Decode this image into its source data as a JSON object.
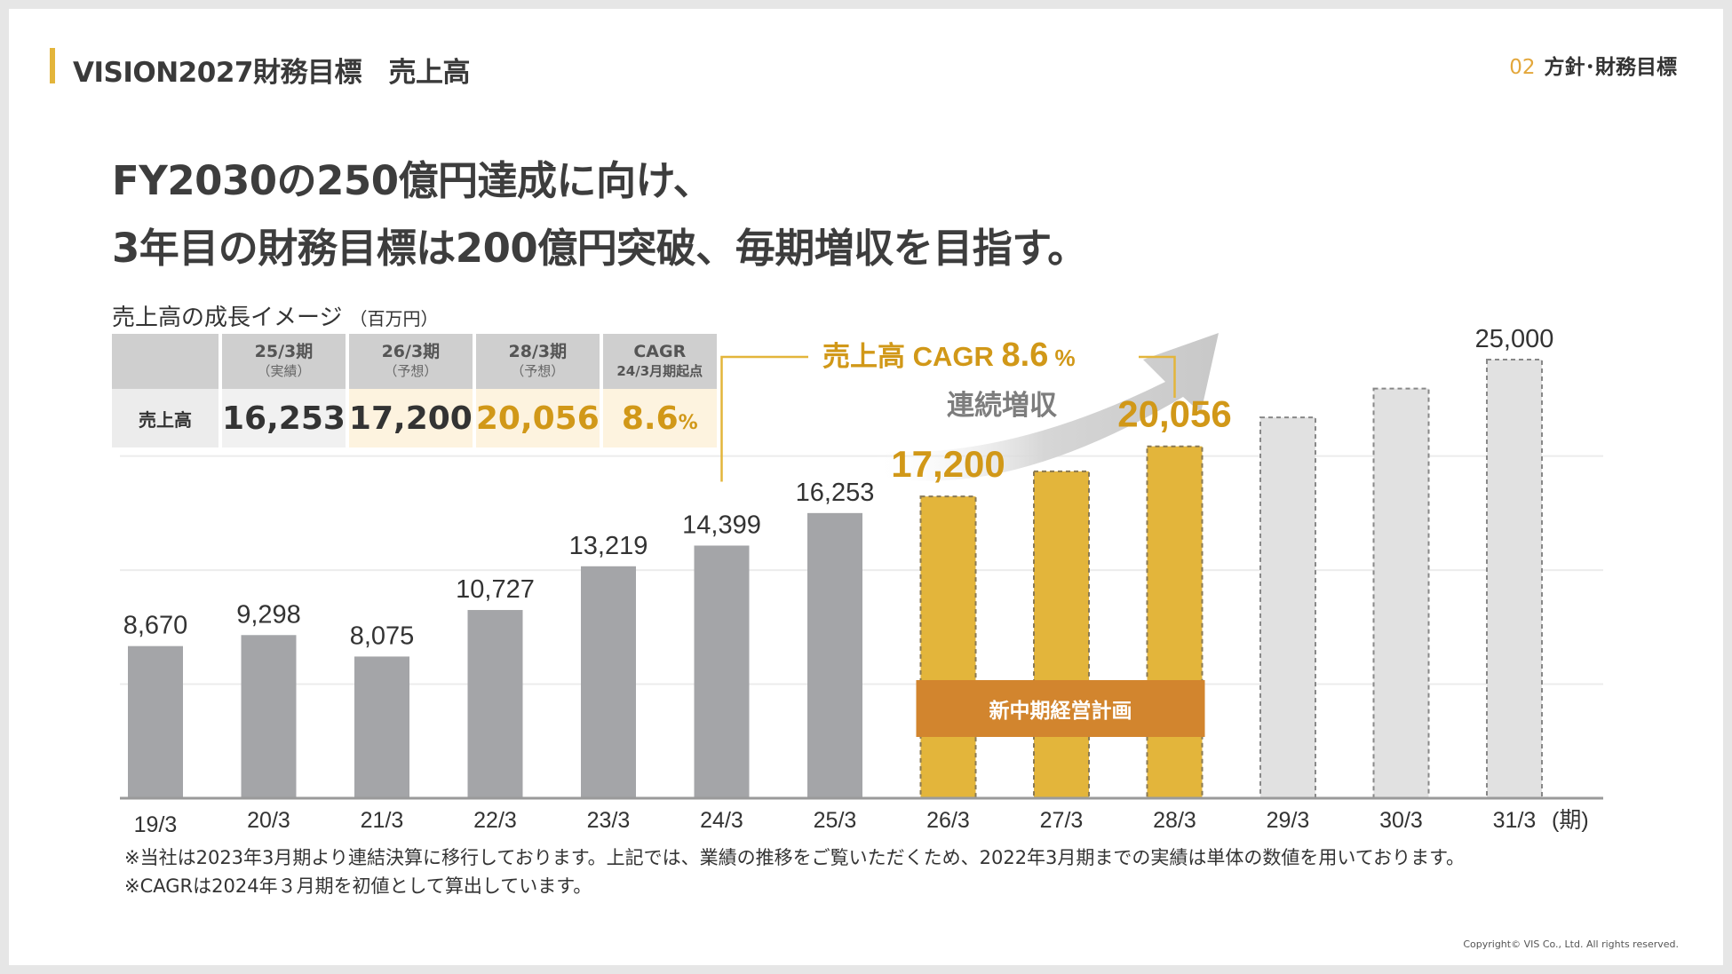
{
  "header": {
    "title": "VISION2027財務目標　売上高",
    "section_number": "02",
    "section_label": "方針･財務目標"
  },
  "headline": {
    "line1": "FY2030の250億円達成に向け、",
    "line2": "3年目の財務目標は200億円突破、毎期増収を目指す。"
  },
  "chart_title": "売上高の成長イメージ",
  "chart_unit": "（百万円）",
  "summary_table": {
    "columns": [
      {
        "label": "25/3期",
        "sub": "（実績）"
      },
      {
        "label": "26/3期",
        "sub": "（予想）"
      },
      {
        "label": "28/3期",
        "sub": "（予想）"
      },
      {
        "label": "CAGR",
        "sub": "24/3月期起点"
      }
    ],
    "row_label": "売上高",
    "values": [
      "16,253",
      "17,200",
      "20,056",
      "8.6"
    ],
    "cagr_unit": "%"
  },
  "chart_data": {
    "type": "bar",
    "categories": [
      "19/3",
      "20/3",
      "21/3",
      "22/3",
      "23/3",
      "24/3",
      "25/3",
      "26/3",
      "27/3",
      "28/3",
      "29/3",
      "30/3",
      "31/3"
    ],
    "values": [
      8670,
      9298,
      8075,
      10727,
      13219,
      14399,
      16253,
      17200,
      null,
      20056,
      null,
      null,
      25000
    ],
    "value_labels": [
      "8,670",
      "9,298",
      "8,075",
      "10,727",
      "13,219",
      "14,399",
      "16,253",
      "17,200",
      "",
      "20,056",
      "",
      "",
      "25,000"
    ],
    "bar_types": [
      "actual",
      "actual",
      "actual",
      "actual",
      "actual",
      "actual",
      "actual",
      "plan",
      "plan",
      "plan",
      "outlook",
      "outlook",
      "outlook"
    ],
    "x_unit_suffix": "(期)",
    "ylim": [
      0,
      26000
    ],
    "unit": "百万円",
    "colors": {
      "actual": "#a4a5a8",
      "plan": "#e3b53b",
      "outlook": "#e1e1e1",
      "highlight_text": "#d19818",
      "banner": "#d2852e",
      "accent": "#e3b53b"
    },
    "annotations": {
      "cagr_label": "売上高 CAGR",
      "cagr_value": "8.6",
      "cagr_unit": "%",
      "trend_text": "連続増収",
      "plan_banner": "新中期経営計画"
    }
  },
  "notes": [
    "※当社は2023年3月期より連結決算に移行しております。上記では、業績の推移をご覧いただくため、2022年3月期までの実績は単体の数値を用いております。",
    "※CAGRは2024年３月期を初値として算出しています。"
  ],
  "copyright": "Copyright© VIS Co., Ltd. All rights reserved."
}
